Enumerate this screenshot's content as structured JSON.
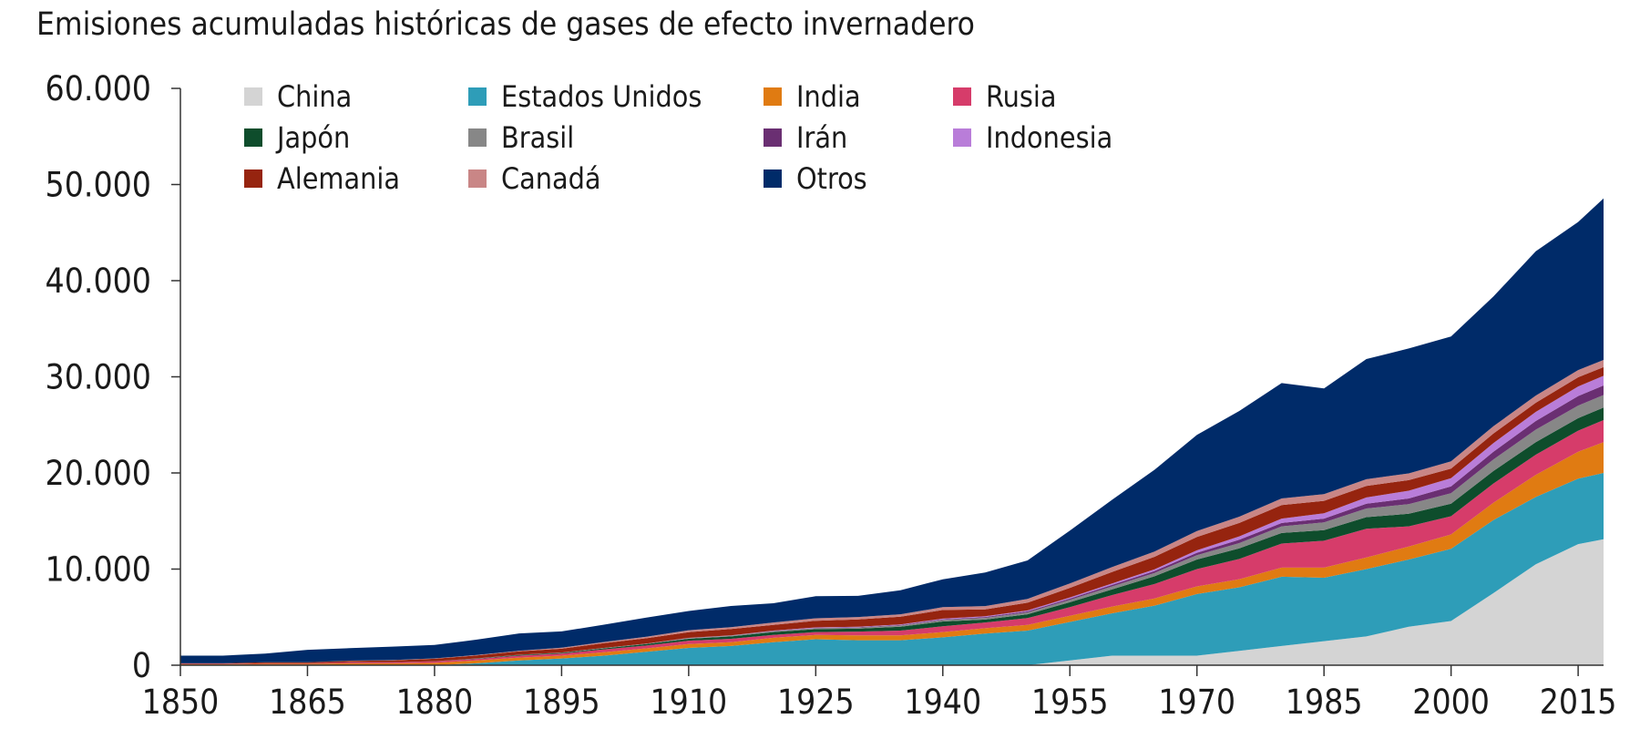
{
  "chart_data": {
    "type": "area",
    "stacked": true,
    "title": "Emisiones acumuladas históricas de gases de efecto invernadero",
    "xlabel": "",
    "ylabel": "",
    "xlim": [
      1850,
      2018
    ],
    "ylim": [
      0,
      60000
    ],
    "x_ticks": [
      1850,
      1865,
      1880,
      1895,
      1910,
      1925,
      1940,
      1955,
      1970,
      1985,
      2000,
      2015
    ],
    "x_tick_labels": [
      "1850",
      "1865",
      "1880",
      "1895",
      "1910",
      "1925",
      "1940",
      "1955",
      "1970",
      "1985",
      "2000",
      "2015"
    ],
    "y_ticks": [
      0,
      10000,
      20000,
      30000,
      40000,
      50000,
      60000
    ],
    "y_tick_labels": [
      "0",
      "10.000",
      "20.000",
      "30.000",
      "40.000",
      "50.000",
      "60.000"
    ],
    "grid": false,
    "legend_position": "top",
    "x": [
      1850,
      1855,
      1860,
      1865,
      1870,
      1875,
      1880,
      1885,
      1890,
      1895,
      1900,
      1905,
      1910,
      1915,
      1920,
      1925,
      1930,
      1935,
      1940,
      1945,
      1950,
      1955,
      1960,
      1965,
      1970,
      1975,
      1980,
      1985,
      1990,
      1995,
      2000,
      2005,
      2010,
      2015,
      2018
    ],
    "series": [
      {
        "name": "China",
        "color": "#d4d4d4",
        "values": [
          0,
          0,
          0,
          0,
          0,
          0,
          0,
          0,
          0,
          0,
          0,
          0,
          0,
          0,
          0,
          0,
          0,
          0,
          0,
          0,
          0,
          500,
          1000,
          1000,
          1000,
          1500,
          2000,
          2500,
          3000,
          4000,
          4600,
          7500,
          10500,
          12600,
          13100
        ]
      },
      {
        "name": "Estados Unidos",
        "color": "#2e9db8",
        "values": [
          0,
          0,
          0,
          0,
          0,
          0,
          0,
          200,
          500,
          700,
          1000,
          1400,
          1800,
          2000,
          2400,
          2700,
          2600,
          2600,
          2900,
          3300,
          3600,
          4000,
          4400,
          5200,
          6400,
          6600,
          7200,
          6600,
          7000,
          7000,
          7500,
          7600,
          7000,
          6800,
          6900
        ]
      },
      {
        "name": "India",
        "color": "#e07b12",
        "values": [
          100,
          100,
          150,
          150,
          200,
          200,
          250,
          300,
          300,
          300,
          350,
          350,
          400,
          400,
          450,
          450,
          500,
          500,
          550,
          550,
          600,
          650,
          700,
          750,
          800,
          850,
          950,
          1050,
          1200,
          1350,
          1500,
          1800,
          2300,
          2800,
          3200
        ]
      },
      {
        "name": "Rusia",
        "color": "#d63c6a",
        "values": [
          50,
          50,
          50,
          50,
          100,
          100,
          150,
          150,
          200,
          200,
          300,
          300,
          350,
          350,
          300,
          300,
          400,
          500,
          600,
          600,
          700,
          900,
          1200,
          1500,
          1800,
          2100,
          2500,
          2800,
          3000,
          2100,
          1900,
          2000,
          2100,
          2200,
          2300
        ]
      },
      {
        "name": "Japón",
        "color": "#0e4d2c",
        "values": [
          0,
          0,
          0,
          0,
          0,
          0,
          20,
          40,
          60,
          80,
          100,
          150,
          200,
          250,
          300,
          300,
          300,
          400,
          500,
          300,
          400,
          500,
          600,
          800,
          1000,
          1100,
          1100,
          1100,
          1200,
          1300,
          1300,
          1300,
          1300,
          1300,
          1300
        ]
      },
      {
        "name": "Brasil",
        "color": "#878787",
        "values": [
          0,
          0,
          0,
          0,
          0,
          0,
          0,
          20,
          30,
          40,
          50,
          60,
          70,
          80,
          90,
          100,
          110,
          130,
          150,
          180,
          200,
          250,
          300,
          350,
          450,
          550,
          700,
          800,
          900,
          1000,
          1100,
          1200,
          1300,
          1300,
          1300
        ]
      },
      {
        "name": "Irán",
        "color": "#6a2f72",
        "values": [
          0,
          0,
          0,
          0,
          0,
          0,
          0,
          0,
          0,
          0,
          0,
          0,
          0,
          0,
          20,
          30,
          40,
          50,
          60,
          80,
          100,
          130,
          160,
          200,
          250,
          350,
          350,
          400,
          500,
          600,
          700,
          800,
          900,
          1000,
          1000
        ]
      },
      {
        "name": "Indonesia",
        "color": "#b97dd9",
        "values": [
          0,
          0,
          0,
          0,
          0,
          0,
          0,
          0,
          0,
          0,
          0,
          0,
          20,
          30,
          40,
          50,
          60,
          70,
          80,
          90,
          100,
          120,
          150,
          180,
          250,
          350,
          450,
          550,
          650,
          800,
          850,
          900,
          950,
          1000,
          1000
        ]
      },
      {
        "name": "Alemania",
        "color": "#96240f",
        "values": [
          50,
          50,
          100,
          100,
          150,
          200,
          250,
          300,
          350,
          400,
          500,
          550,
          600,
          650,
          600,
          700,
          750,
          800,
          900,
          700,
          800,
          1000,
          1200,
          1300,
          1400,
          1400,
          1400,
          1300,
          1200,
          1100,
          1000,
          1000,
          950,
          950,
          900
        ]
      },
      {
        "name": "Canadá",
        "color": "#c98686",
        "values": [
          0,
          0,
          0,
          0,
          20,
          30,
          40,
          50,
          70,
          100,
          120,
          150,
          200,
          200,
          250,
          250,
          250,
          250,
          300,
          350,
          400,
          450,
          500,
          550,
          600,
          650,
          700,
          700,
          700,
          700,
          750,
          750,
          750,
          750,
          750
        ]
      },
      {
        "name": "Otros",
        "color": "#002b69",
        "values": [
          800,
          800,
          900,
          1300,
          1300,
          1400,
          1400,
          1600,
          1800,
          1700,
          1800,
          2000,
          2000,
          2200,
          2000,
          2300,
          2200,
          2500,
          2900,
          3500,
          4000,
          5500,
          7000,
          8500,
          10000,
          11000,
          12000,
          11000,
          12500,
          13000,
          13000,
          13500,
          15000,
          15400,
          16800
        ]
      }
    ]
  }
}
